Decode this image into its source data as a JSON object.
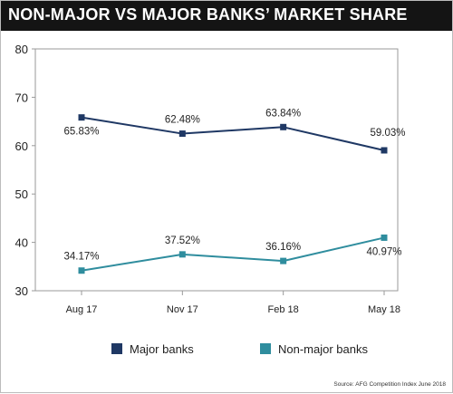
{
  "colors": {
    "major": "#1f3864",
    "non_major": "#2f8d9e",
    "grid": "#9a9a9a"
  },
  "chart_data": {
    "type": "line",
    "title": "NON-MAJOR VS MAJOR BANKS’ MARKET SHARE",
    "categories": [
      "Aug 17",
      "Nov 17",
      "Feb 18",
      "May 18"
    ],
    "ylim": [
      30,
      80
    ],
    "yticks": [
      30,
      40,
      50,
      60,
      70,
      80
    ],
    "grid": false,
    "legend_position": "bottom",
    "series": [
      {
        "name": "Major banks",
        "values": [
          65.83,
          62.48,
          63.84,
          59.03
        ],
        "labels": [
          "65.83%",
          "62.48%",
          "63.84%",
          "59.03%"
        ]
      },
      {
        "name": "Non-major banks",
        "values": [
          34.17,
          37.52,
          36.16,
          40.97
        ],
        "labels": [
          "34.17%",
          "37.52%",
          "36.16%",
          "40.97%"
        ]
      }
    ],
    "source": "Source: AFG Competition Index June 2018"
  }
}
